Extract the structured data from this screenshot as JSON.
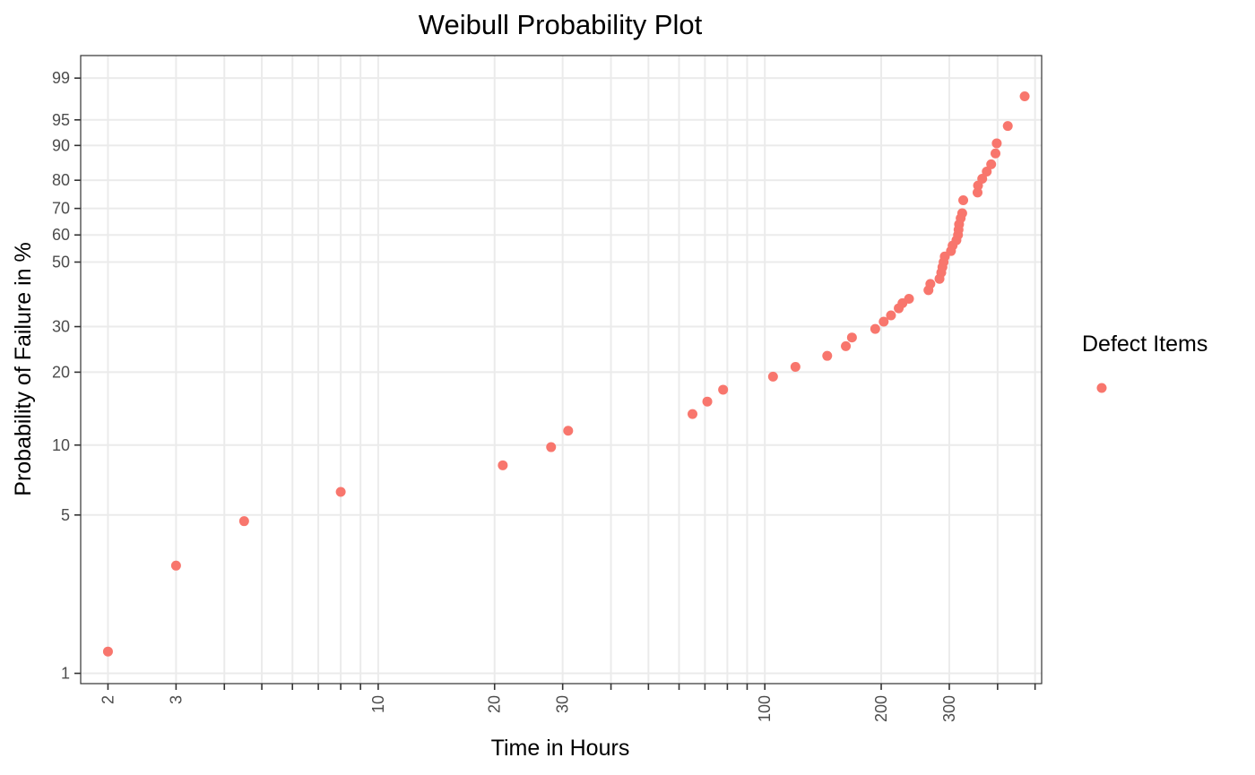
{
  "chart_data": {
    "type": "scatter",
    "title": "Weibull Probability Plot",
    "xlabel": "Time in Hours",
    "ylabel": "Probability of Failure in %",
    "x_scale": "log",
    "y_scale": "weibull-probability",
    "xlim": [
      1.7,
      520
    ],
    "ylim": [
      0.9,
      99.7
    ],
    "x_tick_labels": [
      "2",
      "3",
      "10",
      "20",
      "30",
      "100",
      "200",
      "300"
    ],
    "y_tick_labels": [
      "1",
      "5",
      "10",
      "20",
      "30",
      "50",
      "60",
      "70",
      "80",
      "90",
      "95",
      "99"
    ],
    "grid": true,
    "legend": {
      "position": "right",
      "title": "Defect Items"
    },
    "colors": {
      "points": "#F8766D",
      "grid": "#EBEBEB",
      "frame": "#333333",
      "tick_label": "#4D4D4D"
    },
    "series": [
      {
        "name": "",
        "points": [
          [
            2,
            1.25
          ],
          [
            3,
            3.0
          ],
          [
            4.5,
            4.7
          ],
          [
            8,
            6.3
          ],
          [
            21,
            8.2
          ],
          [
            28,
            9.8
          ],
          [
            31,
            11.5
          ],
          [
            65,
            13.5
          ],
          [
            71,
            15.2
          ],
          [
            78,
            17.0
          ],
          [
            105,
            19.2
          ],
          [
            120,
            21.0
          ],
          [
            145,
            23.2
          ],
          [
            162,
            25.3
          ],
          [
            168,
            27.3
          ],
          [
            193,
            29.4
          ],
          [
            203,
            31.3
          ],
          [
            212,
            33.0
          ],
          [
            222,
            35.0
          ],
          [
            227,
            36.5
          ],
          [
            236,
            37.8
          ],
          [
            265,
            40.5
          ],
          [
            268,
            42.5
          ],
          [
            283,
            44.2
          ],
          [
            286,
            46.3
          ],
          [
            288,
            48.2
          ],
          [
            290,
            50.0
          ],
          [
            292,
            52.0
          ],
          [
            303,
            54.0
          ],
          [
            306,
            56.0
          ],
          [
            313,
            58.0
          ],
          [
            316,
            60.0
          ],
          [
            317,
            62.0
          ],
          [
            318,
            64.0
          ],
          [
            321,
            66.3
          ],
          [
            324,
            68.2
          ],
          [
            326,
            73.0
          ],
          [
            355,
            75.8
          ],
          [
            356,
            78.2
          ],
          [
            365,
            80.5
          ],
          [
            375,
            82.8
          ],
          [
            385,
            85.0
          ],
          [
            395,
            88.0
          ],
          [
            398,
            90.5
          ],
          [
            425,
            94.0
          ],
          [
            470,
            97.8
          ]
        ]
      }
    ]
  }
}
